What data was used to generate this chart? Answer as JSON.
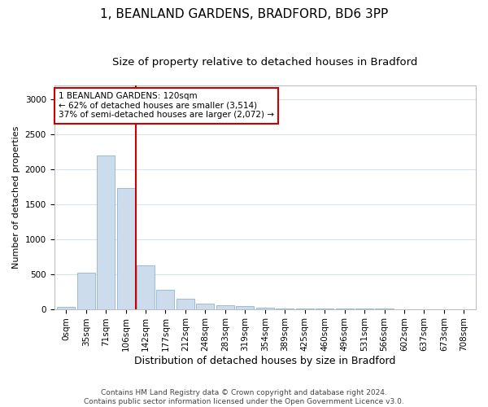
{
  "title1": "1, BEANLAND GARDENS, BRADFORD, BD6 3PP",
  "title2": "Size of property relative to detached houses in Bradford",
  "xlabel": "Distribution of detached houses by size in Bradford",
  "ylabel": "Number of detached properties",
  "footnote": "Contains HM Land Registry data © Crown copyright and database right 2024.\nContains public sector information licensed under the Open Government Licence v3.0.",
  "bin_labels": [
    "0sqm",
    "35sqm",
    "71sqm",
    "106sqm",
    "142sqm",
    "177sqm",
    "212sqm",
    "248sqm",
    "283sqm",
    "319sqm",
    "354sqm",
    "389sqm",
    "425sqm",
    "460sqm",
    "496sqm",
    "531sqm",
    "566sqm",
    "602sqm",
    "637sqm",
    "673sqm",
    "708sqm"
  ],
  "bar_heights": [
    25,
    520,
    2195,
    1730,
    630,
    270,
    145,
    80,
    55,
    45,
    20,
    10,
    8,
    5,
    3,
    2,
    2,
    1,
    1,
    1,
    1
  ],
  "bar_color": "#cddcec",
  "bar_edge_color": "#7aaaca",
  "grid_color": "#d8e4f0",
  "vline_color": "#cc0000",
  "annotation_text": "1 BEANLAND GARDENS: 120sqm\n← 62% of detached houses are smaller (3,514)\n37% of semi-detached houses are larger (2,072) →",
  "annotation_box_color": "#cc0000",
  "ylim": [
    0,
    3200
  ],
  "yticks": [
    0,
    500,
    1000,
    1500,
    2000,
    2500,
    3000
  ],
  "title1_fontsize": 11,
  "title2_fontsize": 9.5,
  "xlabel_fontsize": 9,
  "ylabel_fontsize": 8,
  "tick_fontsize": 7.5,
  "annot_fontsize": 7.5,
  "footnote_fontsize": 6.5
}
